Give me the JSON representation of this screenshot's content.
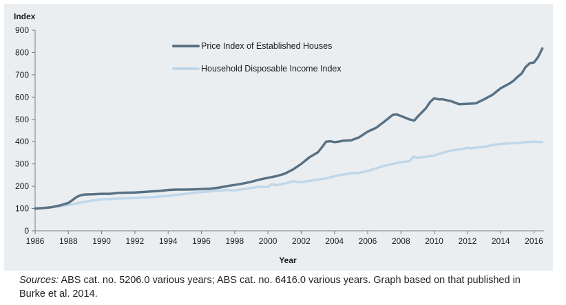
{
  "chart_data": {
    "type": "line",
    "ylabel": "Index",
    "xlabel": "Year",
    "ylim": [
      0,
      900
    ],
    "xlim": [
      1986,
      2016.6
    ],
    "yticks": [
      0,
      100,
      200,
      300,
      400,
      500,
      600,
      700,
      800,
      900
    ],
    "xticks": [
      1986,
      1988,
      1990,
      1992,
      1994,
      1996,
      1998,
      2000,
      2002,
      2004,
      2006,
      2008,
      2010,
      2012,
      2014,
      2016
    ],
    "grid": false,
    "legend_position": "top-center",
    "series": [
      {
        "name": "Price Index of Established Houses",
        "color": "#587184",
        "x": [
          1986.0,
          1986.5,
          1987.0,
          1987.5,
          1988.0,
          1988.25,
          1988.5,
          1988.75,
          1989.0,
          1989.5,
          1990.0,
          1990.5,
          1991.0,
          1991.5,
          1992.0,
          1992.5,
          1993.0,
          1993.5,
          1994.0,
          1994.5,
          1995.0,
          1995.5,
          1996.0,
          1996.5,
          1997.0,
          1997.5,
          1998.0,
          1998.5,
          1999.0,
          1999.5,
          2000.0,
          2000.5,
          2001.0,
          2001.5,
          2002.0,
          2002.5,
          2003.0,
          2003.25,
          2003.5,
          2003.75,
          2004.0,
          2004.25,
          2004.5,
          2004.75,
          2005.0,
          2005.5,
          2006.0,
          2006.5,
          2007.0,
          2007.5,
          2007.75,
          2008.0,
          2008.5,
          2008.8,
          2009.0,
          2009.5,
          2009.75,
          2010.0,
          2010.25,
          2010.5,
          2011.0,
          2011.5,
          2012.0,
          2012.5,
          2013.0,
          2013.5,
          2014.0,
          2014.5,
          2014.75,
          2015.0,
          2015.25,
          2015.5,
          2015.75,
          2016.0,
          2016.25,
          2016.5
        ],
        "values": [
          100,
          102,
          106,
          114,
          125,
          138,
          152,
          160,
          163,
          164,
          166,
          166,
          170,
          171,
          172,
          174,
          177,
          179,
          183,
          185,
          185,
          186,
          187,
          189,
          193,
          200,
          206,
          212,
          220,
          230,
          238,
          245,
          256,
          275,
          300,
          330,
          352,
          375,
          400,
          402,
          398,
          400,
          404,
          405,
          406,
          420,
          445,
          462,
          490,
          520,
          522,
          515,
          500,
          495,
          512,
          550,
          578,
          595,
          590,
          590,
          582,
          568,
          570,
          572,
          590,
          610,
          640,
          660,
          672,
          690,
          705,
          735,
          752,
          755,
          780,
          818
        ]
      },
      {
        "name": "Household Disposable Income Index",
        "color": "#bfd7ea",
        "x": [
          1986.0,
          1986.5,
          1987.0,
          1987.5,
          1988.0,
          1988.5,
          1989.0,
          1989.5,
          1990.0,
          1990.5,
          1991.0,
          1991.5,
          1992.0,
          1992.5,
          1993.0,
          1993.5,
          1994.0,
          1994.5,
          1995.0,
          1995.5,
          1996.0,
          1996.5,
          1997.0,
          1997.5,
          1998.0,
          1998.5,
          1999.0,
          1999.5,
          2000.0,
          2000.25,
          2000.5,
          2001.0,
          2001.5,
          2002.0,
          2002.5,
          2003.0,
          2003.5,
          2004.0,
          2004.5,
          2005.0,
          2005.5,
          2006.0,
          2006.5,
          2007.0,
          2007.5,
          2008.0,
          2008.5,
          2008.75,
          2009.0,
          2009.5,
          2010.0,
          2010.5,
          2011.0,
          2011.5,
          2012.0,
          2012.25,
          2012.5,
          2013.0,
          2013.5,
          2014.0,
          2014.5,
          2015.0,
          2015.5,
          2016.0,
          2016.5
        ],
        "values": [
          100,
          103,
          106,
          110,
          116,
          123,
          130,
          137,
          141,
          143,
          145,
          146,
          147,
          149,
          151,
          154,
          157,
          161,
          165,
          170,
          174,
          177,
          180,
          183,
          181,
          187,
          192,
          198,
          196,
          210,
          204,
          212,
          222,
          218,
          224,
          230,
          235,
          245,
          252,
          258,
          260,
          268,
          280,
          292,
          300,
          308,
          312,
          332,
          328,
          332,
          338,
          350,
          360,
          365,
          372,
          370,
          374,
          376,
          385,
          390,
          392,
          394,
          398,
          400,
          398
        ]
      }
    ]
  },
  "source": {
    "label": "Sources:",
    "text": " ABS cat. no. 5206.0 various years; ABS cat. no. 6416.0 various years. Graph based on that published in Burke et al. 2014."
  }
}
